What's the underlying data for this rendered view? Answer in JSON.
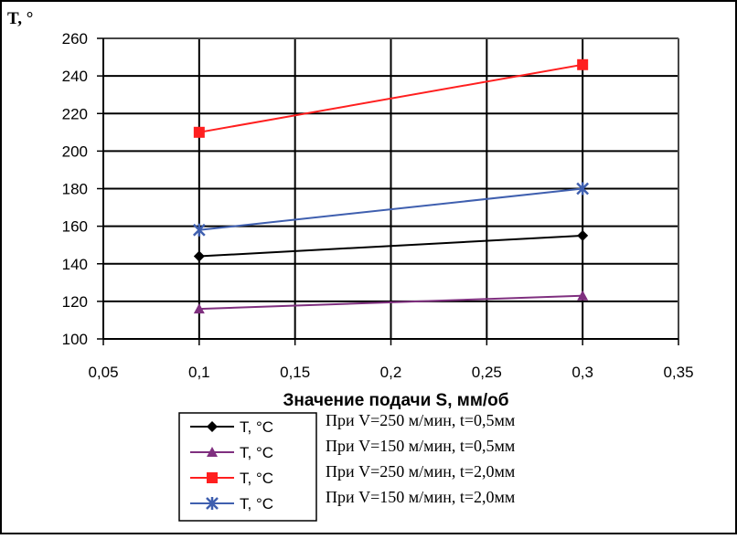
{
  "chart_data": {
    "type": "line",
    "ylabel": "T, °",
    "xlabel": "Значение подачи S, мм/об",
    "xlim": [
      0.05,
      0.35
    ],
    "ylim": [
      100,
      260
    ],
    "x_ticks": [
      0.05,
      0.1,
      0.15,
      0.2,
      0.25,
      0.3,
      0.35
    ],
    "x_tick_labels": [
      "0,05",
      "0,1",
      "0,15",
      "0,2",
      "0,25",
      "0,3",
      "0,35"
    ],
    "y_ticks": [
      100,
      120,
      140,
      160,
      180,
      200,
      220,
      240,
      260
    ],
    "y_tick_labels": [
      "100",
      "120",
      "140",
      "160",
      "180",
      "200",
      "220",
      "240",
      "260"
    ],
    "grid": true,
    "legend_position": "bottom-left",
    "series": [
      {
        "name": "T, °C",
        "marker": "diamond",
        "color": "#000000",
        "x": [
          0.1,
          0.3
        ],
        "values": [
          144,
          155
        ]
      },
      {
        "name": "T, °C",
        "marker": "triangle",
        "color": "#7f2f7f",
        "x": [
          0.1,
          0.3
        ],
        "values": [
          116,
          123
        ]
      },
      {
        "name": "T, °C",
        "marker": "square",
        "color": "#ff1f1f",
        "x": [
          0.1,
          0.3
        ],
        "values": [
          210,
          246
        ]
      },
      {
        "name": "T, °C",
        "marker": "star",
        "color": "#3f5faf",
        "x": [
          0.1,
          0.3
        ],
        "values": [
          158,
          180
        ]
      }
    ],
    "annotations": [
      "При V=250 м/мин, t=0,5мм",
      "При V=150 м/мин, t=0,5мм",
      "При V=250 м/мин, t=2,0мм",
      "При V=150 м/мин, t=2,0мм"
    ]
  }
}
